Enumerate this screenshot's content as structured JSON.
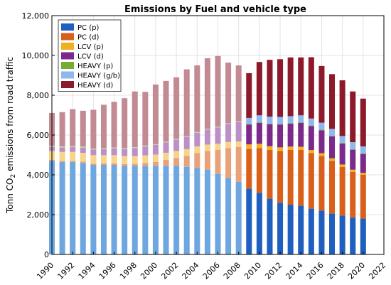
{
  "chart_data": {
    "type": "bar",
    "stacked": true,
    "title": "Emissions by Fuel and vehicle type",
    "ylabel_parts": [
      "Tonn CO",
      "2",
      " emissions from road traffic"
    ],
    "ylim": [
      0,
      12000
    ],
    "xlim": [
      1990,
      2022
    ],
    "yticks": [
      0,
      2000,
      4000,
      6000,
      8000,
      10000,
      12000
    ],
    "ytick_labels": [
      "0",
      "2,000",
      "4,000",
      "6,000",
      "8,000",
      "10,000",
      "12,000"
    ],
    "xticks": [
      1990,
      1992,
      1994,
      1996,
      1998,
      2000,
      2002,
      2004,
      2006,
      2008,
      2010,
      2012,
      2014,
      2016,
      2018,
      2020,
      2022
    ],
    "xtick_labels": [
      "1990",
      "1992",
      "1994",
      "1996",
      "1998",
      "2000",
      "2002",
      "2004",
      "2006",
      "2008",
      "2010",
      "2012",
      "2014",
      "2016",
      "2018",
      "2020",
      "2022"
    ],
    "grid": true,
    "legend_position": "top-left",
    "years": [
      1990,
      1991,
      1992,
      1993,
      1994,
      1995,
      1996,
      1997,
      1998,
      1999,
      2000,
      2001,
      2002,
      2003,
      2004,
      2005,
      2006,
      2007,
      2008,
      2009,
      2010,
      2011,
      2012,
      2013,
      2014,
      2015,
      2016,
      2017,
      2018,
      2019,
      2020
    ],
    "series": [
      {
        "name": "PC (p)",
        "color": "#1f5fbf",
        "faded_color": "#6ea6e0",
        "values": [
          4700,
          4650,
          4650,
          4600,
          4500,
          4500,
          4500,
          4450,
          4450,
          4450,
          4450,
          4450,
          4450,
          4400,
          4350,
          4250,
          4050,
          3850,
          3650,
          3300,
          3100,
          2800,
          2600,
          2500,
          2450,
          2300,
          2200,
          2050,
          1950,
          1850,
          1800
        ]
      },
      {
        "name": "PC (d)",
        "color": "#d9601a",
        "faded_color": "#e8a27a",
        "values": [
          50,
          50,
          50,
          60,
          60,
          70,
          80,
          90,
          100,
          150,
          200,
          300,
          400,
          550,
          750,
          950,
          1200,
          1500,
          1750,
          2000,
          2250,
          2450,
          2600,
          2750,
          2800,
          2800,
          2750,
          2650,
          2450,
          2300,
          2200
        ]
      },
      {
        "name": "LCV (p)",
        "color": "#f0b020",
        "faded_color": "#f6d58a",
        "values": [
          450,
          450,
          450,
          440,
          430,
          420,
          410,
          400,
          390,
          380,
          370,
          360,
          350,
          340,
          330,
          320,
          310,
          300,
          280,
          230,
          210,
          190,
          180,
          170,
          160,
          150,
          140,
          130,
          120,
          110,
          100
        ]
      },
      {
        "name": "LCV (d)",
        "color": "#7b2a8c",
        "faded_color": "#bc8fc6",
        "values": [
          200,
          220,
          240,
          260,
          280,
          300,
          330,
          360,
          400,
          440,
          480,
          520,
          560,
          620,
          680,
          750,
          820,
          900,
          980,
          1000,
          1050,
          1100,
          1150,
          1150,
          1200,
          1200,
          1150,
          1100,
          1050,
          1000,
          950
        ]
      },
      {
        "name": "HEAVY (p)",
        "color": "#77ac30",
        "faded_color": "#b4d28c",
        "values": [
          50,
          50,
          50,
          50,
          40,
          40,
          40,
          40,
          40,
          40,
          30,
          30,
          30,
          30,
          30,
          30,
          30,
          30,
          30,
          30,
          30,
          30,
          30,
          30,
          30,
          30,
          30,
          30,
          30,
          30,
          30
        ]
      },
      {
        "name": "HEAVY (g/b)",
        "color": "#8fb9ee",
        "faded_color": "#c3daf5",
        "values": [
          10,
          10,
          10,
          10,
          10,
          10,
          10,
          10,
          10,
          10,
          10,
          10,
          10,
          10,
          10,
          10,
          10,
          10,
          10,
          300,
          350,
          350,
          350,
          350,
          350,
          350,
          350,
          350,
          350,
          350,
          350
        ]
      },
      {
        "name": "HEAVY (d)",
        "color": "#8c1a2a",
        "faded_color": "#c28a92",
        "values": [
          1650,
          1720,
          1850,
          1800,
          1950,
          2180,
          2300,
          2500,
          2800,
          2700,
          3000,
          3050,
          3100,
          3350,
          3350,
          3550,
          3550,
          3050,
          2800,
          2250,
          2680,
          2860,
          2900,
          2950,
          2910,
          3080,
          2850,
          2750,
          2800,
          2550,
          2400
        ]
      }
    ],
    "faded_before_year": 2009
  }
}
